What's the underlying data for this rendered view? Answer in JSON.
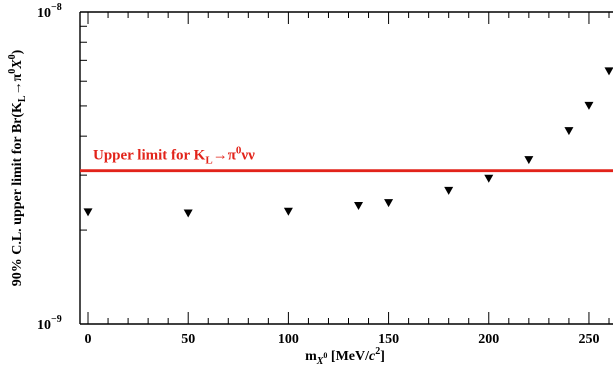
{
  "chart_data": {
    "type": "scatter",
    "xlabel_parts": {
      "base": "m",
      "sub": "X",
      "subsup": "0",
      "unit_open": " [MeV/",
      "unit_italic": "c",
      "unit_sup": "2",
      "unit_close": "]"
    },
    "ylabel_parts": {
      "prefix": "90% C.L. upper limit for Br(K",
      "sub_L": "L",
      "arrow": "→π",
      "pi_sup": "0",
      "x_italic": "X",
      "x_sup": "0",
      "close": ")"
    },
    "xlim": [
      -4,
      262
    ],
    "ylim": [
      1e-09,
      1e-08
    ],
    "y_scale": "log",
    "x_ticks": [
      {
        "value": 0,
        "label": "0"
      },
      {
        "value": 50,
        "label": "50"
      },
      {
        "value": 100,
        "label": "100"
      },
      {
        "value": 150,
        "label": "150"
      },
      {
        "value": 200,
        "label": "200"
      },
      {
        "value": 250,
        "label": "250"
      }
    ],
    "y_tick_labels": {
      "top_base": "10",
      "top_exp": "−8",
      "bottom_base": "10",
      "bottom_exp": "−9"
    },
    "series": [
      {
        "marker": "downward-triangle",
        "color": "#000000",
        "points": [
          {
            "x": 0,
            "y": 2.28e-09
          },
          {
            "x": 50,
            "y": 2.26e-09
          },
          {
            "x": 100,
            "y": 2.29e-09
          },
          {
            "x": 135,
            "y": 2.39e-09
          },
          {
            "x": 150,
            "y": 2.44e-09
          },
          {
            "x": 180,
            "y": 2.67e-09
          },
          {
            "x": 200,
            "y": 2.92e-09
          },
          {
            "x": 220,
            "y": 3.35e-09
          },
          {
            "x": 240,
            "y": 4.15e-09
          },
          {
            "x": 250,
            "y": 5e-09
          },
          {
            "x": 260,
            "y": 6.45e-09
          }
        ]
      }
    ],
    "reference_line": {
      "y": 3.1e-09,
      "color": "#e2231a",
      "label_prefix": "Upper limit for K",
      "label_sub": "L",
      "label_arrow": "→π",
      "label_sup": "0",
      "label_suffix": "νν"
    }
  }
}
